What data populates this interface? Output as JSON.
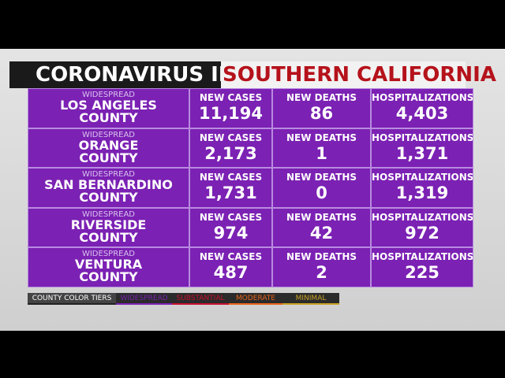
{
  "header": {
    "title_white": "CORONAVIRUS IN",
    "title_red": "SOUTHERN CALIFORNIA"
  },
  "table": {
    "rows": [
      {
        "tier": "WIDESPREAD",
        "county": [
          "LOS ANGELES",
          "COUNTY"
        ],
        "cells": [
          {
            "label": "NEW CASES",
            "value": "11,194"
          },
          {
            "label": "NEW DEATHS",
            "value": "86"
          },
          {
            "label": "HOSPITALIZATIONS",
            "value": "4,403"
          }
        ]
      },
      {
        "tier": "WIDESPREAD",
        "county": [
          "ORANGE",
          "COUNTY"
        ],
        "cells": [
          {
            "label": "NEW CASES",
            "value": "2,173"
          },
          {
            "label": "NEW DEATHS",
            "value": "1"
          },
          {
            "label": "HOSPITALIZATIONS",
            "value": "1,371"
          }
        ]
      },
      {
        "tier": "WIDESPREAD",
        "county": [
          "SAN BERNARDINO",
          "COUNTY"
        ],
        "cells": [
          {
            "label": "NEW CASES",
            "value": "1,731"
          },
          {
            "label": "NEW DEATHS",
            "value": "0"
          },
          {
            "label": "HOSPITALIZATIONS",
            "value": "1,319"
          }
        ]
      },
      {
        "tier": "WIDESPREAD",
        "county": [
          "RIVERSIDE",
          "COUNTY"
        ],
        "cells": [
          {
            "label": "NEW CASES",
            "value": "974"
          },
          {
            "label": "NEW DEATHS",
            "value": "42"
          },
          {
            "label": "HOSPITALIZATIONS",
            "value": "972"
          }
        ]
      },
      {
        "tier": "WIDESPREAD",
        "county": [
          "VENTURA",
          "COUNTY"
        ],
        "cells": [
          {
            "label": "NEW CASES",
            "value": "487"
          },
          {
            "label": "NEW DEATHS",
            "value": "2"
          },
          {
            "label": "HOSPITALIZATIONS",
            "value": "225"
          }
        ]
      }
    ]
  },
  "legend": {
    "title": "COUNTY COLOR TIERS",
    "items": [
      {
        "label": "WIDESPREAD",
        "color": "#7b21b3"
      },
      {
        "label": "SUBSTANTIAL",
        "color": "#c8102e"
      },
      {
        "label": "MODERATE",
        "color": "#e8641b"
      },
      {
        "label": "MINIMAL",
        "color": "#c9a227"
      }
    ]
  }
}
